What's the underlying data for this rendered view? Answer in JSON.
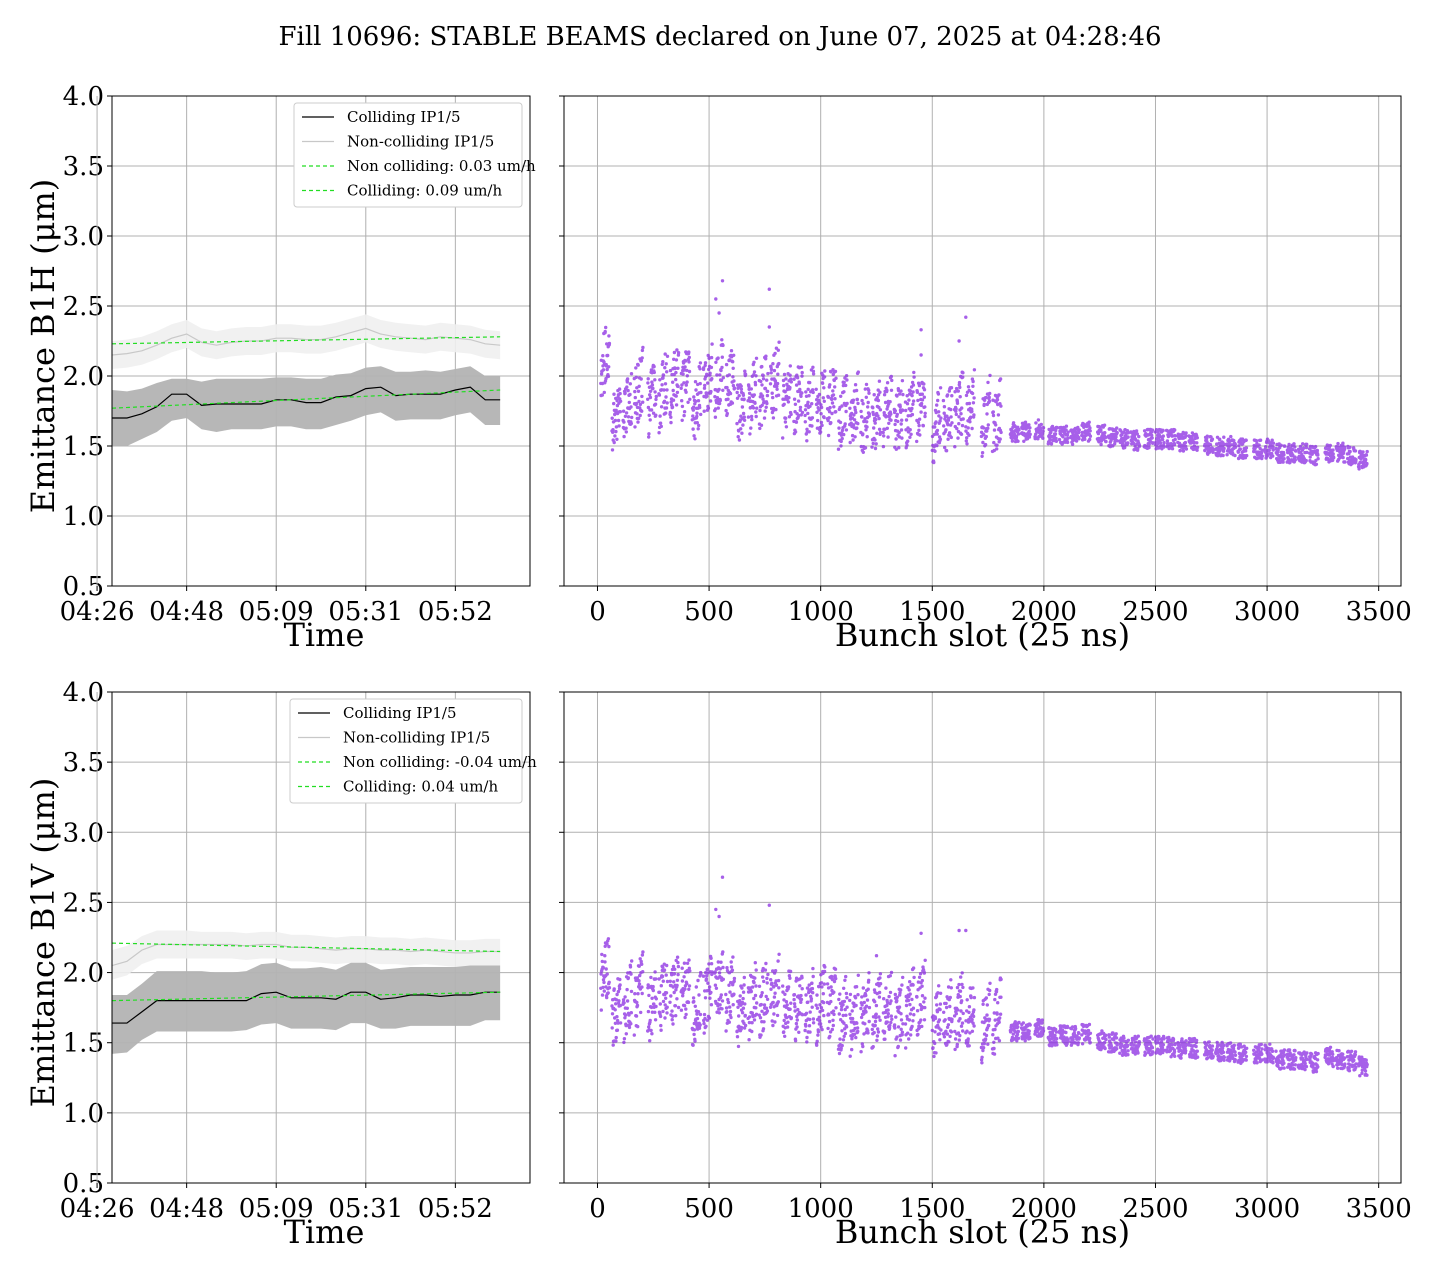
{
  "figure_title": "Fill 10696: STABLE BEAMS declared on June 07, 2025 at 04:28:46",
  "colors": {
    "colliding": "#000000",
    "noncolliding": "#c8c8c8",
    "fit": "#22dd22",
    "band_colliding": "#b3b3b3",
    "band_noncolliding": "#efefef",
    "scatter": "#8a2be2",
    "grid": "#b0b0b0"
  },
  "chart_data": [
    {
      "type": "line",
      "ylabel": "Emittance B1H (μm)",
      "xlabel": "Time",
      "ylim": [
        0.5,
        4.0
      ],
      "yticks": [
        0.5,
        1.0,
        1.5,
        2.0,
        2.5,
        3.0,
        3.5,
        4.0
      ],
      "xlim": [
        1.0,
        29.0
      ],
      "xticks": [
        0,
        6,
        12,
        18,
        24
      ],
      "xtick_labels": [
        "04:26",
        "04:48",
        "05:09",
        "05:31",
        "05:52"
      ],
      "grid": true,
      "legend_placement": "upper-right",
      "legend": [
        "Colliding IP1/5",
        "Non-colliding IP1/5",
        "Non colliding: 0.03 um/h",
        "Colliding: 0.09 um/h"
      ],
      "x": [
        1,
        2,
        3,
        4,
        5,
        6,
        7,
        8,
        9,
        10,
        11,
        12,
        13,
        14,
        15,
        16,
        17,
        18,
        19,
        20,
        21,
        22,
        23,
        24,
        25,
        26,
        27
      ],
      "colliding": [
        1.7,
        1.7,
        1.73,
        1.78,
        1.87,
        1.87,
        1.79,
        1.8,
        1.8,
        1.8,
        1.8,
        1.83,
        1.83,
        1.81,
        1.81,
        1.85,
        1.86,
        1.91,
        1.92,
        1.86,
        1.87,
        1.87,
        1.87,
        1.9,
        1.92,
        1.83,
        1.83
      ],
      "colliding_band_low": [
        1.5,
        1.5,
        1.55,
        1.6,
        1.68,
        1.7,
        1.62,
        1.6,
        1.62,
        1.62,
        1.62,
        1.64,
        1.64,
        1.62,
        1.62,
        1.65,
        1.68,
        1.72,
        1.74,
        1.68,
        1.69,
        1.69,
        1.69,
        1.72,
        1.74,
        1.65,
        1.65
      ],
      "colliding_band_high": [
        1.9,
        1.89,
        1.91,
        1.95,
        1.98,
        1.98,
        1.96,
        1.98,
        1.98,
        1.98,
        1.98,
        1.99,
        1.99,
        1.98,
        1.98,
        2.01,
        2.02,
        2.06,
        2.07,
        2.03,
        2.03,
        2.04,
        2.03,
        2.05,
        2.07,
        2.0,
        2.0
      ],
      "noncolliding": [
        2.15,
        2.16,
        2.18,
        2.22,
        2.27,
        2.3,
        2.24,
        2.22,
        2.24,
        2.25,
        2.25,
        2.27,
        2.27,
        2.26,
        2.26,
        2.28,
        2.31,
        2.34,
        2.3,
        2.28,
        2.27,
        2.26,
        2.28,
        2.27,
        2.26,
        2.23,
        2.22
      ],
      "noncolliding_band_low": [
        2.05,
        2.06,
        2.08,
        2.12,
        2.17,
        2.2,
        2.14,
        2.12,
        2.14,
        2.15,
        2.15,
        2.17,
        2.17,
        2.16,
        2.16,
        2.18,
        2.21,
        2.24,
        2.2,
        2.18,
        2.17,
        2.16,
        2.18,
        2.17,
        2.16,
        2.13,
        2.12
      ],
      "noncolliding_band_high": [
        2.25,
        2.26,
        2.28,
        2.32,
        2.37,
        2.4,
        2.34,
        2.32,
        2.34,
        2.35,
        2.35,
        2.37,
        2.37,
        2.36,
        2.36,
        2.38,
        2.41,
        2.44,
        2.4,
        2.38,
        2.37,
        2.36,
        2.38,
        2.37,
        2.36,
        2.33,
        2.32
      ],
      "fit_noncolliding": [
        2.23,
        2.28
      ],
      "fit_colliding": [
        1.77,
        1.9
      ]
    },
    {
      "type": "scatter",
      "xlabel": "Bunch slot (25 ns)",
      "ylim": [
        0.5,
        4.0
      ],
      "xlim": [
        -150,
        3600
      ],
      "xticks": [
        0,
        500,
        1000,
        1500,
        2000,
        2500,
        3000,
        3500
      ],
      "grid": true,
      "trains": [
        [
          15,
          2.12
        ],
        [
          65,
          1.75
        ],
        [
          115,
          1.8
        ],
        [
          165,
          1.9
        ],
        [
          225,
          1.85
        ],
        [
          275,
          1.9
        ],
        [
          325,
          1.95
        ],
        [
          375,
          1.95
        ],
        [
          425,
          1.8
        ],
        [
          475,
          1.95
        ],
        [
          525,
          2.0
        ],
        [
          575,
          1.95
        ],
        [
          625,
          1.8
        ],
        [
          675,
          1.85
        ],
        [
          725,
          1.9
        ],
        [
          775,
          1.95
        ],
        [
          830,
          1.85
        ],
        [
          880,
          1.85
        ],
        [
          930,
          1.8
        ],
        [
          980,
          1.8
        ],
        [
          1030,
          1.85
        ],
        [
          1080,
          1.75
        ],
        [
          1130,
          1.75
        ],
        [
          1180,
          1.7
        ],
        [
          1230,
          1.7
        ],
        [
          1280,
          1.75
        ],
        [
          1330,
          1.7
        ],
        [
          1380,
          1.75
        ],
        [
          1430,
          1.8
        ],
        [
          1500,
          1.65
        ],
        [
          1550,
          1.7
        ],
        [
          1600,
          1.75
        ],
        [
          1650,
          1.75
        ],
        [
          1720,
          1.7
        ],
        [
          1770,
          1.7
        ],
        [
          1850,
          1.6
        ],
        [
          1900,
          1.6
        ],
        [
          1960,
          1.62
        ],
        [
          2020,
          1.58
        ],
        [
          2070,
          1.58
        ],
        [
          2120,
          1.58
        ],
        [
          2170,
          1.6
        ],
        [
          2240,
          1.58
        ],
        [
          2290,
          1.56
        ],
        [
          2340,
          1.55
        ],
        [
          2390,
          1.54
        ],
        [
          2450,
          1.55
        ],
        [
          2500,
          1.55
        ],
        [
          2550,
          1.55
        ],
        [
          2600,
          1.53
        ],
        [
          2650,
          1.53
        ],
        [
          2720,
          1.5
        ],
        [
          2770,
          1.5
        ],
        [
          2820,
          1.5
        ],
        [
          2870,
          1.48
        ],
        [
          2940,
          1.48
        ],
        [
          2990,
          1.48
        ],
        [
          3040,
          1.45
        ],
        [
          3090,
          1.45
        ],
        [
          3140,
          1.45
        ],
        [
          3190,
          1.43
        ],
        [
          3260,
          1.45
        ],
        [
          3310,
          1.45
        ],
        [
          3360,
          1.43
        ],
        [
          3410,
          1.4
        ]
      ],
      "outliers": [
        [
          530,
          2.55
        ],
        [
          545,
          2.45
        ],
        [
          560,
          2.68
        ],
        [
          770,
          2.62
        ],
        [
          1450,
          2.33
        ],
        [
          1450,
          2.15
        ],
        [
          1620,
          2.25
        ],
        [
          1650,
          2.42
        ],
        [
          770,
          2.35
        ]
      ]
    },
    {
      "type": "line",
      "ylabel": "Emittance B1V (μm)",
      "xlabel": "Time",
      "ylim": [
        0.5,
        4.0
      ],
      "yticks": [
        0.5,
        1.0,
        1.5,
        2.0,
        2.5,
        3.0,
        3.5,
        4.0
      ],
      "xlim": [
        1.0,
        29.0
      ],
      "xticks": [
        0,
        6,
        12,
        18,
        24
      ],
      "xtick_labels": [
        "04:26",
        "04:48",
        "05:09",
        "05:31",
        "05:52"
      ],
      "grid": true,
      "legend_placement": "upper-right",
      "legend": [
        "Colliding IP1/5",
        "Non-colliding IP1/5",
        "Non colliding: -0.04 um/h",
        "Colliding: 0.04 um/h"
      ],
      "x": [
        1,
        2,
        3,
        4,
        5,
        6,
        7,
        8,
        9,
        10,
        11,
        12,
        13,
        14,
        15,
        16,
        17,
        18,
        19,
        20,
        21,
        22,
        23,
        24,
        25,
        26,
        27
      ],
      "colliding": [
        1.64,
        1.64,
        1.72,
        1.8,
        1.8,
        1.8,
        1.8,
        1.8,
        1.8,
        1.8,
        1.85,
        1.86,
        1.82,
        1.82,
        1.82,
        1.81,
        1.86,
        1.86,
        1.81,
        1.82,
        1.84,
        1.84,
        1.83,
        1.84,
        1.84,
        1.86,
        1.86
      ],
      "colliding_band_low": [
        1.42,
        1.43,
        1.52,
        1.58,
        1.58,
        1.58,
        1.58,
        1.58,
        1.58,
        1.59,
        1.63,
        1.64,
        1.6,
        1.6,
        1.6,
        1.59,
        1.64,
        1.64,
        1.6,
        1.6,
        1.62,
        1.62,
        1.62,
        1.62,
        1.62,
        1.66,
        1.66
      ],
      "colliding_band_high": [
        1.84,
        1.84,
        1.92,
        2.01,
        2.01,
        2.01,
        2.01,
        2.0,
        2.0,
        2.01,
        2.06,
        2.07,
        2.03,
        2.03,
        2.04,
        2.02,
        2.07,
        2.07,
        2.02,
        2.03,
        2.04,
        2.04,
        2.04,
        2.04,
        2.05,
        2.05,
        2.05
      ],
      "noncolliding": [
        2.05,
        2.08,
        2.16,
        2.2,
        2.2,
        2.2,
        2.2,
        2.2,
        2.2,
        2.19,
        2.2,
        2.2,
        2.18,
        2.18,
        2.17,
        2.16,
        2.17,
        2.17,
        2.16,
        2.16,
        2.15,
        2.16,
        2.15,
        2.14,
        2.14,
        2.15,
        2.15
      ],
      "noncolliding_band_low": [
        1.95,
        1.98,
        2.06,
        2.1,
        2.1,
        2.1,
        2.1,
        2.1,
        2.1,
        2.09,
        2.1,
        2.1,
        2.08,
        2.08,
        2.07,
        2.06,
        2.07,
        2.07,
        2.06,
        2.06,
        2.05,
        2.06,
        2.05,
        2.04,
        2.04,
        2.05,
        2.05
      ],
      "noncolliding_band_high": [
        2.16,
        2.19,
        2.26,
        2.3,
        2.3,
        2.3,
        2.29,
        2.29,
        2.29,
        2.28,
        2.29,
        2.29,
        2.27,
        2.27,
        2.26,
        2.25,
        2.26,
        2.26,
        2.25,
        2.25,
        2.24,
        2.25,
        2.24,
        2.23,
        2.23,
        2.24,
        2.24
      ],
      "fit_noncolliding": [
        2.21,
        2.15
      ],
      "fit_colliding": [
        1.8,
        1.86
      ]
    },
    {
      "type": "scatter",
      "xlabel": "Bunch slot (25 ns)",
      "ylim": [
        0.5,
        4.0
      ],
      "xlim": [
        -150,
        3600
      ],
      "xticks": [
        0,
        500,
        1000,
        1500,
        2000,
        2500,
        3000,
        3500
      ],
      "grid": true,
      "trains": [
        [
          15,
          2.0
        ],
        [
          65,
          1.72
        ],
        [
          115,
          1.78
        ],
        [
          165,
          1.85
        ],
        [
          225,
          1.78
        ],
        [
          275,
          1.85
        ],
        [
          325,
          1.88
        ],
        [
          375,
          1.9
        ],
        [
          425,
          1.75
        ],
        [
          475,
          1.85
        ],
        [
          525,
          1.9
        ],
        [
          575,
          1.88
        ],
        [
          625,
          1.75
        ],
        [
          675,
          1.8
        ],
        [
          725,
          1.82
        ],
        [
          775,
          1.85
        ],
        [
          830,
          1.78
        ],
        [
          880,
          1.78
        ],
        [
          930,
          1.75
        ],
        [
          980,
          1.78
        ],
        [
          1030,
          1.8
        ],
        [
          1080,
          1.7
        ],
        [
          1130,
          1.7
        ],
        [
          1180,
          1.72
        ],
        [
          1230,
          1.7
        ],
        [
          1280,
          1.75
        ],
        [
          1330,
          1.7
        ],
        [
          1380,
          1.75
        ],
        [
          1430,
          1.8
        ],
        [
          1500,
          1.65
        ],
        [
          1550,
          1.68
        ],
        [
          1600,
          1.72
        ],
        [
          1650,
          1.7
        ],
        [
          1720,
          1.65
        ],
        [
          1770,
          1.68
        ],
        [
          1850,
          1.58
        ],
        [
          1900,
          1.58
        ],
        [
          1960,
          1.6
        ],
        [
          2020,
          1.54
        ],
        [
          2070,
          1.55
        ],
        [
          2120,
          1.55
        ],
        [
          2170,
          1.56
        ],
        [
          2240,
          1.52
        ],
        [
          2290,
          1.5
        ],
        [
          2340,
          1.48
        ],
        [
          2390,
          1.48
        ],
        [
          2450,
          1.48
        ],
        [
          2500,
          1.48
        ],
        [
          2550,
          1.47
        ],
        [
          2600,
          1.46
        ],
        [
          2650,
          1.46
        ],
        [
          2720,
          1.44
        ],
        [
          2770,
          1.44
        ],
        [
          2820,
          1.43
        ],
        [
          2870,
          1.42
        ],
        [
          2940,
          1.42
        ],
        [
          2990,
          1.42
        ],
        [
          3040,
          1.38
        ],
        [
          3090,
          1.38
        ],
        [
          3140,
          1.37
        ],
        [
          3190,
          1.36
        ],
        [
          3260,
          1.4
        ],
        [
          3310,
          1.38
        ],
        [
          3360,
          1.37
        ],
        [
          3410,
          1.33
        ]
      ],
      "outliers": [
        [
          530,
          2.45
        ],
        [
          545,
          2.4
        ],
        [
          560,
          2.68
        ],
        [
          770,
          2.48
        ],
        [
          1450,
          2.28
        ],
        [
          1620,
          2.3
        ],
        [
          1650,
          2.3
        ],
        [
          1250,
          2.12
        ]
      ]
    }
  ]
}
